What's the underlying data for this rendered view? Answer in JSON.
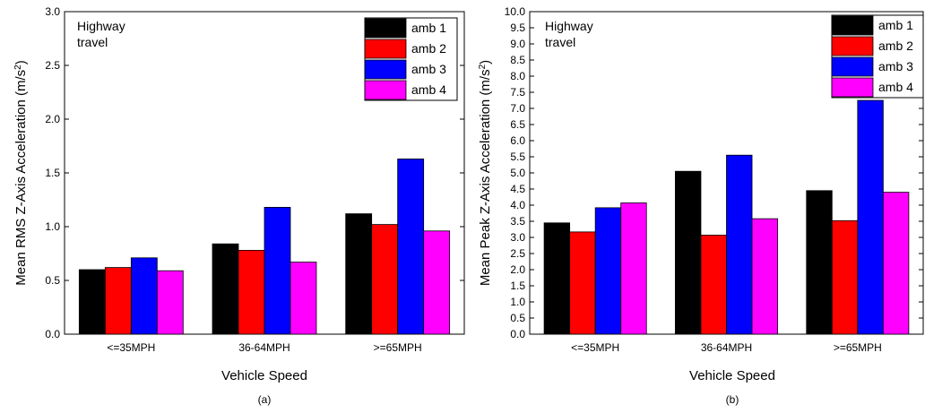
{
  "figure": {
    "panels": [
      {
        "caption": "(a)",
        "annotation_lines": [
          "Highway",
          "travel"
        ],
        "ylabel_main": "Mean RMS Z-Axis Acceleration (m/s",
        "ylabel_sup": "2",
        "ylabel_close": ")",
        "xlabel": "Vehicle Speed"
      },
      {
        "caption": "(b)",
        "annotation_lines": [
          "Highway",
          "travel"
        ],
        "ylabel_main": "Mean Peak Z-Axis Acceleration (m/s",
        "ylabel_sup": "2",
        "ylabel_close": ")",
        "xlabel": "Vehicle Speed"
      }
    ]
  },
  "colors": {
    "amb 1": "#000000",
    "amb 2": "#ff0000",
    "amb 3": "#0000ff",
    "amb 4": "#ff00ff"
  },
  "chart_data": [
    {
      "type": "bar",
      "categories": [
        "<=35MPH",
        "36-64MPH",
        ">=65MPH"
      ],
      "series": [
        {
          "name": "amb 1",
          "values": [
            0.6,
            0.84,
            1.12
          ]
        },
        {
          "name": "amb 2",
          "values": [
            0.62,
            0.78,
            1.02
          ]
        },
        {
          "name": "amb 3",
          "values": [
            0.71,
            1.18,
            1.63
          ]
        },
        {
          "name": "amb 4",
          "values": [
            0.59,
            0.67,
            0.96
          ]
        }
      ],
      "xlabel": "Vehicle Speed",
      "ylabel": "Mean RMS Z-Axis Acceleration (m/s2)",
      "ylim": [
        0,
        3.0
      ],
      "yticks": [
        "0.0",
        "0.5",
        "1.0",
        "1.5",
        "2.0",
        "2.5",
        "3.0"
      ],
      "grid": false,
      "legend_position": "top-right",
      "annotation": "Highway travel"
    },
    {
      "type": "bar",
      "categories": [
        "<=35MPH",
        "36-64MPH",
        ">=65MPH"
      ],
      "series": [
        {
          "name": "amb 1",
          "values": [
            3.45,
            5.05,
            4.45
          ]
        },
        {
          "name": "amb 2",
          "values": [
            3.17,
            3.07,
            3.52
          ]
        },
        {
          "name": "amb 3",
          "values": [
            3.92,
            5.55,
            7.25
          ]
        },
        {
          "name": "amb 4",
          "values": [
            4.07,
            3.58,
            4.4
          ]
        }
      ],
      "xlabel": "Vehicle Speed",
      "ylabel": "Mean Peak Z-Axis Acceleration (m/s2)",
      "ylim": [
        0,
        10.0
      ],
      "yticks": [
        "0.0",
        "0.5",
        "1.0",
        "1.5",
        "2.0",
        "2.5",
        "3.0",
        "3.5",
        "4.0",
        "4.5",
        "5.0",
        "5.5",
        "6.0",
        "6.5",
        "7.0",
        "7.5",
        "8.0",
        "8.5",
        "9.0",
        "9.5",
        "10.0"
      ],
      "grid": false,
      "legend_position": "top-right",
      "annotation": "Highway travel"
    }
  ]
}
